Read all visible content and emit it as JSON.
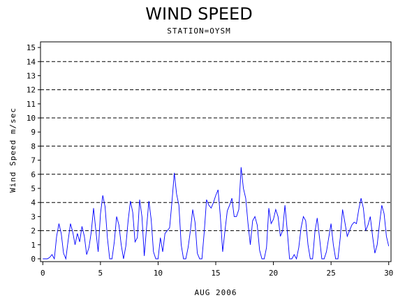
{
  "chart_data": {
    "type": "line",
    "title": "WIND SPEED",
    "subtitle": "STATION=OYSM",
    "xlabel": "AUG 2006",
    "ylabel": "Wind Speed m/sec",
    "xlim": [
      -0.2,
      30.2
    ],
    "ylim": [
      -0.2,
      15.4
    ],
    "xticks": [
      0,
      5,
      10,
      15,
      20,
      25,
      30
    ],
    "yticks": [
      0,
      1,
      2,
      3,
      4,
      5,
      6,
      7,
      8,
      9,
      10,
      11,
      12,
      13,
      14,
      15
    ],
    "reference_lines": [
      2,
      4,
      6,
      8,
      10,
      12,
      14
    ],
    "line_color": "#0000ff",
    "series": [
      {
        "x": [
          0.0,
          0.2,
          0.4,
          0.6,
          0.8,
          1.0,
          1.2,
          1.4,
          1.6,
          1.8,
          2.0,
          2.2,
          2.4,
          2.6,
          2.8,
          3.0,
          3.2,
          3.4,
          3.6,
          3.8,
          4.0,
          4.2,
          4.4,
          4.6,
          4.8,
          5.0,
          5.2,
          5.4,
          5.6,
          5.8,
          6.0,
          6.2,
          6.4,
          6.6,
          6.8,
          7.0,
          7.2,
          7.4,
          7.6,
          7.8,
          8.0,
          8.2,
          8.4,
          8.6,
          8.8,
          9.0,
          9.2,
          9.4,
          9.6,
          9.8,
          10.0,
          10.2,
          10.4,
          10.6,
          10.8,
          11.0,
          11.2,
          11.4,
          11.6,
          11.8,
          12.0,
          12.2,
          12.4,
          12.6,
          12.8,
          13.0,
          13.2,
          13.4,
          13.6,
          13.8,
          14.0,
          14.2,
          14.4,
          14.6,
          14.8,
          15.0,
          15.2,
          15.4,
          15.6,
          15.8,
          16.0,
          16.2,
          16.4,
          16.6,
          16.8,
          17.0,
          17.2,
          17.4,
          17.6,
          17.8,
          18.0,
          18.2,
          18.4,
          18.6,
          18.8,
          19.0,
          19.2,
          19.4,
          19.6,
          19.8,
          20.0,
          20.2,
          20.4,
          20.6,
          20.8,
          21.0,
          21.2,
          21.4,
          21.6,
          21.8,
          22.0,
          22.2,
          22.4,
          22.6,
          22.8,
          23.0,
          23.2,
          23.4,
          23.6,
          23.8,
          24.0,
          24.2,
          24.4,
          24.6,
          24.8,
          25.0,
          25.2,
          25.4,
          25.6,
          25.8,
          26.0,
          26.2,
          26.4,
          26.6,
          26.8,
          27.0,
          27.2,
          27.4,
          27.6,
          27.8,
          28.0,
          28.2,
          28.4,
          28.6,
          28.8,
          29.0,
          29.2,
          29.4,
          29.6,
          29.8,
          30.0
        ],
        "values": [
          0.0,
          0.0,
          0.0,
          0.1,
          0.3,
          0.0,
          1.6,
          2.5,
          1.8,
          0.4,
          0.0,
          1.3,
          2.5,
          1.9,
          1.0,
          1.8,
          1.2,
          2.3,
          1.6,
          0.3,
          0.8,
          1.9,
          3.6,
          2.0,
          0.5,
          3.2,
          4.5,
          3.7,
          1.5,
          0.0,
          0.0,
          1.2,
          3.0,
          2.4,
          1.0,
          0.0,
          0.9,
          2.7,
          4.1,
          3.3,
          1.2,
          1.5,
          4.2,
          3.0,
          0.2,
          2.2,
          4.1,
          2.8,
          0.5,
          0.0,
          0.0,
          1.5,
          0.5,
          1.8,
          2.0,
          2.2,
          4.0,
          6.1,
          4.6,
          3.8,
          1.0,
          0.0,
          0.0,
          0.8,
          2.0,
          3.5,
          2.6,
          0.4,
          0.0,
          0.0,
          1.9,
          4.2,
          3.8,
          3.6,
          4.0,
          4.5,
          4.9,
          3.0,
          0.5,
          2.0,
          3.4,
          3.8,
          4.3,
          3.0,
          3.0,
          3.5,
          6.5,
          5.0,
          4.3,
          2.5,
          1.0,
          2.7,
          3.0,
          2.4,
          0.6,
          0.0,
          0.0,
          0.8,
          3.6,
          2.5,
          2.8,
          3.5,
          3.0,
          1.6,
          2.0,
          3.8,
          2.0,
          0.0,
          0.0,
          0.3,
          0.0,
          0.8,
          2.2,
          3.0,
          2.7,
          1.0,
          0.0,
          0.0,
          1.9,
          2.9,
          1.5,
          0.0,
          0.0,
          0.5,
          1.5,
          2.5,
          1.0,
          0.0,
          0.0,
          1.5,
          3.5,
          2.6,
          1.6,
          2.0,
          2.4,
          2.6,
          2.5,
          3.5,
          4.3,
          3.6,
          2.0,
          2.4,
          3.0,
          1.6,
          0.4,
          1.0,
          2.5,
          3.8,
          3.2,
          1.6,
          0.9
        ]
      }
    ]
  }
}
